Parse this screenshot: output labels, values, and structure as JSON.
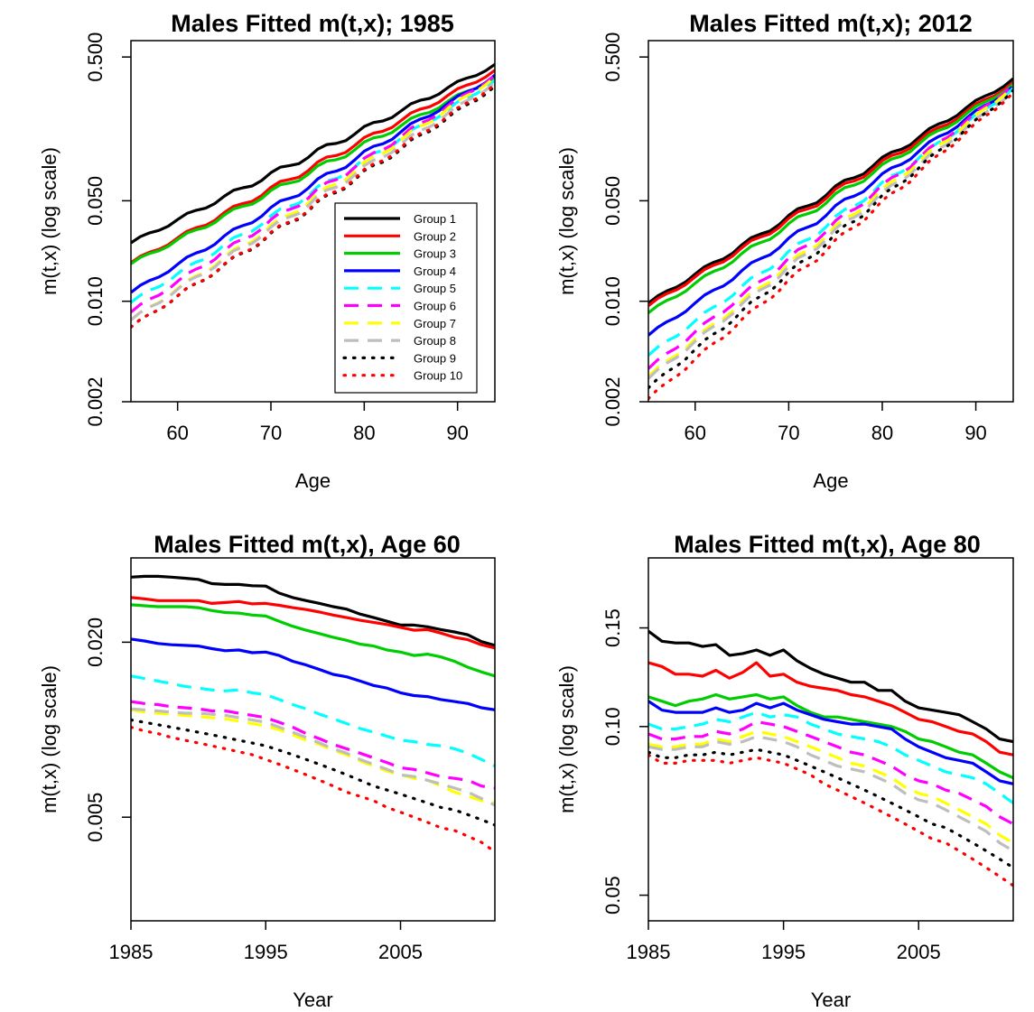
{
  "groups": [
    {
      "name": "Group 1",
      "color": "#000000",
      "style": "solid"
    },
    {
      "name": "Group 2",
      "color": "#ff0000",
      "style": "solid"
    },
    {
      "name": "Group 3",
      "color": "#00cd00",
      "style": "solid"
    },
    {
      "name": "Group 4",
      "color": "#0000ff",
      "style": "solid"
    },
    {
      "name": "Group 5",
      "color": "#00ffff",
      "style": "dashed"
    },
    {
      "name": "Group 6",
      "color": "#ff00ff",
      "style": "dashed"
    },
    {
      "name": "Group 7",
      "color": "#ffff00",
      "style": "dashed"
    },
    {
      "name": "Group 8",
      "color": "#bebebe",
      "style": "dashed"
    },
    {
      "name": "Group 9",
      "color": "#000000",
      "style": "dotted"
    },
    {
      "name": "Group 10",
      "color": "#ff0000",
      "style": "dotted"
    }
  ],
  "chart_data": [
    {
      "type": "line",
      "title": "Males Fitted m(t,x); 1985",
      "xlabel": "Age",
      "ylabel": "m(t,x) (log scale)",
      "log_y": true,
      "xlim": [
        55,
        94
      ],
      "ylim": [
        0.002,
        0.65
      ],
      "xticks": [
        60,
        70,
        80,
        90
      ],
      "yticks": [
        0.002,
        0.01,
        0.05,
        0.5
      ],
      "ytick_labels": [
        "0.002",
        "0.010",
        "0.050",
        "0.500"
      ],
      "legend": "center-right",
      "x_start": 55,
      "x_end": 94,
      "series": [
        {
          "name": "Group 1",
          "values": [
            0.0255,
            0.44
          ]
        },
        {
          "name": "Group 2",
          "values": [
            0.0185,
            0.4
          ]
        },
        {
          "name": "Group 3",
          "values": [
            0.0182,
            0.36
          ]
        },
        {
          "name": "Group 4",
          "values": [
            0.0115,
            0.37
          ]
        },
        {
          "name": "Group 5",
          "values": [
            0.0098,
            0.34
          ]
        },
        {
          "name": "Group 6",
          "values": [
            0.0084,
            0.37
          ]
        },
        {
          "name": "Group 7",
          "values": [
            0.0074,
            0.36
          ]
        },
        {
          "name": "Group 8",
          "values": [
            0.0074,
            0.33
          ]
        },
        {
          "name": "Group 9",
          "values": [
            0.0066,
            0.31
          ]
        },
        {
          "name": "Group 10",
          "values": [
            0.0066,
            0.32
          ]
        }
      ]
    },
    {
      "type": "line",
      "title": "Males Fitted m(t,x); 2012",
      "xlabel": "Age",
      "ylabel": "m(t,x) (log scale)",
      "log_y": true,
      "xlim": [
        55,
        94
      ],
      "ylim": [
        0.002,
        0.65
      ],
      "xticks": [
        60,
        70,
        80,
        90
      ],
      "yticks": [
        0.002,
        0.01,
        0.05,
        0.5
      ],
      "ytick_labels": [
        "0.002",
        "0.010",
        "0.050",
        "0.500"
      ],
      "x_start": 55,
      "x_end": 94,
      "series": [
        {
          "name": "Group 1",
          "values": [
            0.0097,
            0.35
          ]
        },
        {
          "name": "Group 2",
          "values": [
            0.0093,
            0.33
          ]
        },
        {
          "name": "Group 3",
          "values": [
            0.0083,
            0.32
          ]
        },
        {
          "name": "Group 4",
          "values": [
            0.0058,
            0.31
          ]
        },
        {
          "name": "Group 5",
          "values": [
            0.0042,
            0.3
          ]
        },
        {
          "name": "Group 6",
          "values": [
            0.0034,
            0.32
          ]
        },
        {
          "name": "Group 7",
          "values": [
            0.003,
            0.31
          ]
        },
        {
          "name": "Group 8",
          "values": [
            0.0029,
            0.29
          ]
        },
        {
          "name": "Group 9",
          "values": [
            0.0025,
            0.29
          ]
        },
        {
          "name": "Group 10",
          "values": [
            0.0021,
            0.28
          ]
        }
      ]
    },
    {
      "type": "line",
      "title": "Males Fitted m(t,x), Age 60",
      "xlabel": "Year",
      "ylabel": "m(t,x) (log scale)",
      "log_y": true,
      "xlim": [
        1985,
        2012
      ],
      "ylim": [
        0.0022,
        0.039
      ],
      "xticks": [
        1985,
        1995,
        2005
      ],
      "yticks": [
        0.005,
        0.02
      ],
      "ytick_labels": [
        "0.005",
        "0.020"
      ],
      "x_start": 1985,
      "x_end": 2012,
      "series": [
        {
          "name": "Group 1",
          "values": [
            0.0335,
            0.0337,
            0.0337,
            0.0335,
            0.0332,
            0.0329,
            0.0318,
            0.0316,
            0.0316,
            0.0313,
            0.0312,
            0.0295,
            0.0285,
            0.0278,
            0.0272,
            0.0265,
            0.026,
            0.025,
            0.0243,
            0.0236,
            0.0229,
            0.0229,
            0.0226,
            0.0221,
            0.0217,
            0.0212,
            0.0201,
            0.0195
          ]
        },
        {
          "name": "Group 2",
          "values": [
            0.0285,
            0.0282,
            0.0278,
            0.0278,
            0.0278,
            0.0278,
            0.0272,
            0.0274,
            0.0276,
            0.0271,
            0.0272,
            0.0268,
            0.0263,
            0.0259,
            0.0254,
            0.0248,
            0.0243,
            0.0238,
            0.0234,
            0.023,
            0.0225,
            0.022,
            0.0221,
            0.0215,
            0.0208,
            0.0204,
            0.0196,
            0.0191
          ]
        },
        {
          "name": "Group 3",
          "values": [
            0.0269,
            0.0267,
            0.0265,
            0.0265,
            0.0265,
            0.0263,
            0.0257,
            0.0253,
            0.0252,
            0.0248,
            0.0246,
            0.0236,
            0.0227,
            0.022,
            0.0214,
            0.0208,
            0.0203,
            0.0197,
            0.0194,
            0.0188,
            0.0185,
            0.018,
            0.0182,
            0.0178,
            0.0172,
            0.0164,
            0.0158,
            0.0153
          ]
        },
        {
          "name": "Group 4",
          "values": [
            0.0205,
            0.0202,
            0.0198,
            0.0196,
            0.0195,
            0.0194,
            0.019,
            0.0187,
            0.0188,
            0.0184,
            0.0185,
            0.018,
            0.0172,
            0.0167,
            0.0161,
            0.0155,
            0.0152,
            0.0147,
            0.0142,
            0.0139,
            0.0134,
            0.0131,
            0.013,
            0.0127,
            0.0125,
            0.0123,
            0.0119,
            0.0117
          ]
        },
        {
          "name": "Group 5",
          "values": [
            0.0153,
            0.015,
            0.0147,
            0.0144,
            0.0141,
            0.0139,
            0.0137,
            0.0136,
            0.0137,
            0.0134,
            0.0132,
            0.0127,
            0.0122,
            0.0118,
            0.0113,
            0.0109,
            0.0105,
            0.0101,
            0.0098,
            0.0095,
            0.0092,
            0.0091,
            0.0089,
            0.0088,
            0.0086,
            0.0083,
            0.0079,
            0.0075
          ]
        },
        {
          "name": "Group 6",
          "values": [
            0.0125,
            0.0123,
            0.0122,
            0.012,
            0.0119,
            0.0118,
            0.0116,
            0.0116,
            0.0114,
            0.0112,
            0.011,
            0.0106,
            0.0102,
            0.0097,
            0.0093,
            0.0089,
            0.0086,
            0.0083,
            0.008,
            0.0077,
            0.0074,
            0.0073,
            0.0071,
            0.0069,
            0.0068,
            0.0067,
            0.0064,
            0.0063
          ]
        },
        {
          "name": "Group 7",
          "values": [
            0.0117,
            0.0115,
            0.0114,
            0.0113,
            0.0112,
            0.0111,
            0.011,
            0.0109,
            0.0107,
            0.0105,
            0.0103,
            0.01,
            0.0096,
            0.0092,
            0.0089,
            0.0085,
            0.0082,
            0.0078,
            0.0075,
            0.0072,
            0.007,
            0.0068,
            0.0067,
            0.0064,
            0.0061,
            0.0059,
            0.0057,
            0.0056
          ]
        },
        {
          "name": "Group 8",
          "values": [
            0.0118,
            0.0117,
            0.0116,
            0.0115,
            0.0114,
            0.0114,
            0.0113,
            0.0112,
            0.011,
            0.0108,
            0.0106,
            0.0102,
            0.0098,
            0.0094,
            0.009,
            0.0086,
            0.0083,
            0.0079,
            0.0076,
            0.0073,
            0.007,
            0.0069,
            0.0067,
            0.0065,
            0.0063,
            0.0061,
            0.0058,
            0.0055
          ]
        },
        {
          "name": "Group 9",
          "values": [
            0.0108,
            0.0106,
            0.0104,
            0.0102,
            0.01,
            0.0098,
            0.0096,
            0.0094,
            0.0092,
            0.009,
            0.0088,
            0.0085,
            0.0082,
            0.0079,
            0.0076,
            0.0073,
            0.007,
            0.0067,
            0.0064,
            0.0062,
            0.006,
            0.0058,
            0.0056,
            0.0054,
            0.0053,
            0.0051,
            0.0049,
            0.0047
          ]
        },
        {
          "name": "Group 10",
          "values": [
            0.0102,
            0.0099,
            0.0097,
            0.0094,
            0.0092,
            0.009,
            0.0088,
            0.0086,
            0.0084,
            0.0082,
            0.0079,
            0.0076,
            0.0073,
            0.007,
            0.0067,
            0.0064,
            0.0061,
            0.0059,
            0.0057,
            0.0054,
            0.0052,
            0.005,
            0.0048,
            0.0046,
            0.0045,
            0.0043,
            0.0041,
            0.0038
          ]
        }
      ]
    },
    {
      "type": "line",
      "title": "Males Fitted m(t,x), Age 80",
      "xlabel": "Year",
      "ylabel": "m(t,x) (log scale)",
      "log_y": true,
      "xlim": [
        1985,
        2012
      ],
      "ylim": [
        0.045,
        0.2
      ],
      "xticks": [
        1985,
        1995,
        2005
      ],
      "yticks": [
        0.05,
        0.1,
        0.15
      ],
      "ytick_labels": [
        "0.05",
        "0.10",
        "0.15"
      ],
      "x_start": 1985,
      "x_end": 2012,
      "series": [
        {
          "name": "Group 1",
          "values": [
            0.148,
            0.142,
            0.141,
            0.141,
            0.139,
            0.14,
            0.134,
            0.135,
            0.137,
            0.134,
            0.137,
            0.131,
            0.127,
            0.124,
            0.122,
            0.12,
            0.12,
            0.116,
            0.116,
            0.111,
            0.108,
            0.107,
            0.106,
            0.105,
            0.102,
            0.099,
            0.095,
            0.094
          ]
        },
        {
          "name": "Group 2",
          "values": [
            0.13,
            0.128,
            0.124,
            0.124,
            0.123,
            0.126,
            0.122,
            0.125,
            0.13,
            0.123,
            0.124,
            0.12,
            0.118,
            0.117,
            0.116,
            0.114,
            0.113,
            0.111,
            0.109,
            0.106,
            0.103,
            0.102,
            0.1,
            0.098,
            0.097,
            0.094,
            0.09,
            0.089
          ]
        },
        {
          "name": "Group 3",
          "values": [
            0.113,
            0.111,
            0.109,
            0.111,
            0.112,
            0.114,
            0.112,
            0.113,
            0.114,
            0.112,
            0.113,
            0.109,
            0.106,
            0.104,
            0.104,
            0.103,
            0.102,
            0.101,
            0.1,
            0.098,
            0.095,
            0.094,
            0.092,
            0.09,
            0.089,
            0.086,
            0.083,
            0.081
          ]
        },
        {
          "name": "Group 4",
          "values": [
            0.111,
            0.107,
            0.106,
            0.106,
            0.106,
            0.108,
            0.106,
            0.107,
            0.11,
            0.108,
            0.11,
            0.107,
            0.105,
            0.103,
            0.102,
            0.101,
            0.101,
            0.1,
            0.099,
            0.095,
            0.092,
            0.09,
            0.088,
            0.087,
            0.086,
            0.083,
            0.08,
            0.079
          ]
        },
        {
          "name": "Group 5",
          "values": [
            0.101,
            0.099,
            0.099,
            0.1,
            0.101,
            0.103,
            0.102,
            0.104,
            0.106,
            0.104,
            0.105,
            0.104,
            0.101,
            0.099,
            0.097,
            0.096,
            0.095,
            0.094,
            0.092,
            0.089,
            0.087,
            0.085,
            0.083,
            0.082,
            0.081,
            0.079,
            0.076,
            0.073
          ]
        },
        {
          "name": "Group 6",
          "values": [
            0.097,
            0.095,
            0.095,
            0.096,
            0.096,
            0.098,
            0.097,
            0.099,
            0.102,
            0.101,
            0.1,
            0.098,
            0.096,
            0.094,
            0.092,
            0.09,
            0.089,
            0.087,
            0.085,
            0.082,
            0.08,
            0.079,
            0.077,
            0.076,
            0.074,
            0.072,
            0.069,
            0.067
          ]
        },
        {
          "name": "Group 7",
          "values": [
            0.093,
            0.092,
            0.092,
            0.093,
            0.093,
            0.095,
            0.094,
            0.096,
            0.098,
            0.097,
            0.096,
            0.094,
            0.092,
            0.09,
            0.088,
            0.086,
            0.085,
            0.083,
            0.081,
            0.078,
            0.076,
            0.075,
            0.073,
            0.071,
            0.069,
            0.067,
            0.064,
            0.062
          ]
        },
        {
          "name": "Group 8",
          "values": [
            0.092,
            0.091,
            0.091,
            0.092,
            0.092,
            0.094,
            0.093,
            0.094,
            0.096,
            0.095,
            0.094,
            0.092,
            0.089,
            0.087,
            0.085,
            0.084,
            0.083,
            0.081,
            0.079,
            0.076,
            0.074,
            0.073,
            0.071,
            0.069,
            0.067,
            0.065,
            0.062,
            0.06
          ]
        },
        {
          "name": "Group 9",
          "values": [
            0.09,
            0.088,
            0.088,
            0.089,
            0.089,
            0.09,
            0.089,
            0.09,
            0.091,
            0.09,
            0.089,
            0.087,
            0.085,
            0.083,
            0.081,
            0.079,
            0.077,
            0.075,
            0.073,
            0.071,
            0.069,
            0.067,
            0.066,
            0.064,
            0.062,
            0.06,
            0.058,
            0.056
          ]
        },
        {
          "name": "Group 10",
          "values": [
            0.089,
            0.086,
            0.086,
            0.087,
            0.087,
            0.087,
            0.086,
            0.087,
            0.088,
            0.087,
            0.086,
            0.084,
            0.082,
            0.079,
            0.077,
            0.075,
            0.073,
            0.071,
            0.069,
            0.067,
            0.065,
            0.063,
            0.062,
            0.06,
            0.058,
            0.056,
            0.054,
            0.052
          ]
        }
      ]
    }
  ]
}
